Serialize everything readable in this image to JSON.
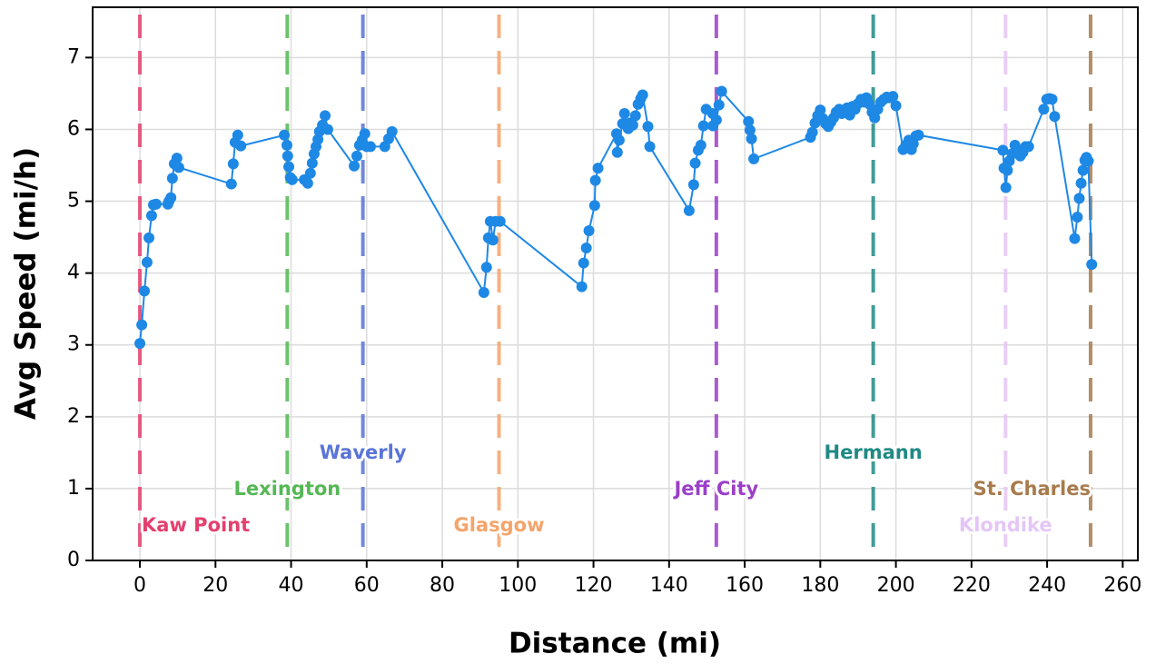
{
  "chart_data": {
    "type": "line",
    "xlabel": "Distance (mi)",
    "ylabel": "Avg Speed (mi/h)",
    "xlim": [
      -12.5,
      264
    ],
    "ylim": [
      0,
      7.7
    ],
    "xticks": [
      0,
      20,
      40,
      60,
      80,
      100,
      120,
      140,
      160,
      180,
      200,
      220,
      240,
      260
    ],
    "yticks": [
      0,
      1,
      2,
      3,
      4,
      5,
      6,
      7
    ],
    "grid": true,
    "x": [
      0,
      0.5,
      1.2,
      1.9,
      2.4,
      3.1,
      3.6,
      4.3,
      7.4,
      7.7,
      8.2,
      8.6,
      9.1,
      9.8,
      10.3,
      24.2,
      24.7,
      25.2,
      25.9,
      26.7,
      38.2,
      38.9,
      39.1,
      39.4,
      39.8,
      40.3,
      43.5,
      44.4,
      45.1,
      45.6,
      46.1,
      46.6,
      47.1,
      47.5,
      48.3,
      49.0,
      49.7,
      56.7,
      57.4,
      58.1,
      58.8,
      59.5,
      60.0,
      61.0,
      64.8,
      65.8,
      66.7,
      91.0,
      91.7,
      92.2,
      92.7,
      93.4,
      94.1,
      95.3,
      116.9,
      117.4,
      118.1,
      118.8,
      120.3,
      120.5,
      121.2,
      126.1,
      126.3,
      126.8,
      127.7,
      128.2,
      129.2,
      129.7,
      130.4,
      131.1,
      131.8,
      132.5,
      133.0,
      134.4,
      134.9,
      145.3,
      146.5,
      146.9,
      147.7,
      148.4,
      149.1,
      149.8,
      151.5,
      151.6,
      152.5,
      153.2,
      153.9,
      161.0,
      161.4,
      161.8,
      162.4,
      177.4,
      177.9,
      178.6,
      179.3,
      180.0,
      180.7,
      181.4,
      182.1,
      182.8,
      183.5,
      184.2,
      185.0,
      185.7,
      186.4,
      187.1,
      187.8,
      188.5,
      189.2,
      190.0,
      190.8,
      191.5,
      192.2,
      193.0,
      193.7,
      194.4,
      195.2,
      196.0,
      196.8,
      197.6,
      198.4,
      199.2,
      200.0,
      201.9,
      202.6,
      203.4,
      204.1,
      204.6,
      205.3,
      206.0,
      228.3,
      228.6,
      229.1,
      229.5,
      230.0,
      230.7,
      231.5,
      232.2,
      232.9,
      233.6,
      234.3,
      235.1,
      239.1,
      239.9,
      240.6,
      241.3,
      242.0,
      247.3,
      248.0,
      248.5,
      249.0,
      249.5,
      250.0,
      250.4,
      250.9,
      251.8
    ],
    "series": [
      {
        "name": "Avg Speed",
        "color": "#1e88e5",
        "values": [
          3.02,
          3.28,
          3.75,
          4.15,
          4.49,
          4.8,
          4.95,
          4.96,
          4.96,
          5.0,
          5.05,
          5.32,
          5.52,
          5.6,
          5.47,
          5.24,
          5.52,
          5.82,
          5.92,
          5.77,
          5.92,
          5.78,
          5.63,
          5.48,
          5.33,
          5.3,
          5.3,
          5.25,
          5.39,
          5.53,
          5.66,
          5.76,
          5.86,
          5.97,
          6.06,
          6.19,
          6.0,
          5.49,
          5.63,
          5.78,
          5.85,
          5.94,
          5.76,
          5.76,
          5.76,
          5.87,
          5.97,
          3.73,
          4.08,
          4.49,
          4.72,
          4.46,
          4.72,
          4.72,
          3.81,
          4.14,
          4.35,
          4.59,
          4.94,
          5.29,
          5.46,
          5.94,
          5.68,
          5.85,
          6.08,
          6.22,
          6.01,
          6.09,
          6.06,
          6.19,
          6.35,
          6.43,
          6.48,
          6.04,
          5.76,
          4.87,
          5.23,
          5.53,
          5.71,
          5.78,
          6.05,
          6.28,
          6.22,
          6.05,
          6.13,
          6.34,
          6.53,
          6.11,
          5.99,
          5.87,
          5.59,
          5.89,
          5.96,
          6.09,
          6.19,
          6.27,
          6.15,
          6.08,
          6.04,
          6.1,
          6.16,
          6.24,
          6.28,
          6.22,
          6.25,
          6.3,
          6.2,
          6.32,
          6.28,
          6.36,
          6.42,
          6.38,
          6.44,
          6.35,
          6.24,
          6.16,
          6.28,
          6.38,
          6.42,
          6.45,
          6.44,
          6.46,
          6.33,
          5.72,
          5.78,
          5.85,
          5.72,
          5.8,
          5.91,
          5.92,
          5.71,
          5.46,
          5.19,
          5.43,
          5.56,
          5.66,
          5.78,
          5.7,
          5.63,
          5.68,
          5.76,
          5.76,
          6.28,
          6.42,
          6.43,
          6.42,
          6.18,
          4.48,
          4.78,
          5.04,
          5.25,
          5.43,
          5.57,
          5.61,
          5.56,
          4.12
        ]
      }
    ],
    "vlines": [
      {
        "x": 0,
        "label": "Kaw Point",
        "color": "#e3406e"
      },
      {
        "x": 39,
        "label": "Lexington",
        "color": "#55b855"
      },
      {
        "x": 59,
        "label": "Waverly",
        "color": "#5a74d6"
      },
      {
        "x": 95,
        "label": "Glasgow",
        "color": "#f4a46a"
      },
      {
        "x": 152.5,
        "label": "Jeff City",
        "color": "#9b3fc8"
      },
      {
        "x": 194,
        "label": "Hermann",
        "color": "#1f8a84"
      },
      {
        "x": 229,
        "label": "Klondike",
        "color": "#e4c6f6"
      },
      {
        "x": 251.5,
        "label": "St. Charles",
        "color": "#a87b4c"
      }
    ]
  }
}
